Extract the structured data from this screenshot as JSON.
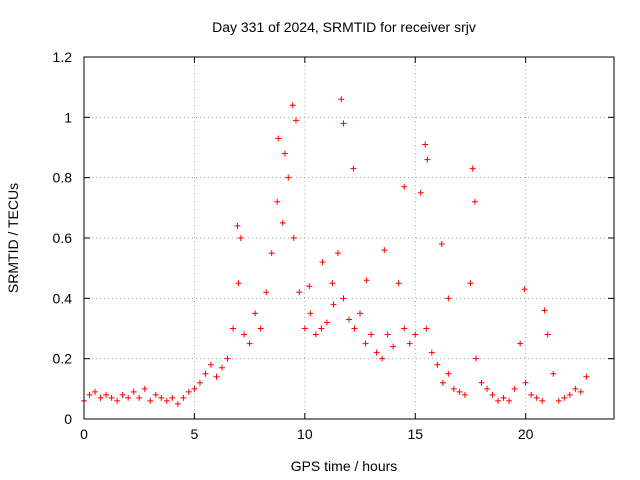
{
  "chart_data": {
    "type": "scatter",
    "title": "Day 331 of 2024, SRMTID for receiver srjv",
    "xlabel": "GPS time / hours",
    "ylabel": "SRMTID / TECUs",
    "xlim": [
      0,
      24
    ],
    "ylim": [
      0,
      1.2
    ],
    "x_ticks": [
      0,
      5,
      10,
      15,
      20
    ],
    "x_tick_labels": [
      "0",
      "5",
      "10",
      "15",
      "20"
    ],
    "y_ticks": [
      0,
      0.2,
      0.4,
      0.6,
      0.8,
      1.0,
      1.2
    ],
    "y_tick_labels": [
      "0",
      "0.2",
      "0.4",
      "0.6",
      "0.8",
      "1",
      "1.2"
    ],
    "grid": true,
    "marker": "+",
    "color": "#ff0000",
    "series": [
      {
        "name": "srjv",
        "x": [
          0.0,
          0.25,
          0.5,
          0.75,
          1.0,
          1.25,
          1.5,
          1.75,
          2.0,
          2.25,
          2.5,
          2.75,
          3.0,
          3.25,
          3.5,
          3.75,
          4.0,
          4.25,
          4.5,
          4.75,
          5.0,
          5.25,
          5.5,
          5.75,
          6.0,
          6.25,
          6.5,
          6.75,
          7.0,
          7.25,
          7.5,
          7.75,
          8.0,
          8.25,
          8.5,
          8.75,
          9.0,
          9.25,
          9.5,
          9.75,
          10.0,
          10.25,
          10.5,
          10.75,
          11.0,
          11.25,
          11.5,
          11.75,
          12.0,
          12.25,
          12.5,
          12.75,
          13.0,
          13.25,
          13.5,
          13.75,
          14.0,
          14.25,
          14.5,
          14.75,
          15.0,
          15.25,
          15.5,
          15.75,
          16.0,
          16.25,
          16.5,
          16.75,
          17.0,
          17.25,
          17.5,
          17.75,
          18.0,
          18.25,
          18.5,
          18.75,
          19.0,
          19.25,
          19.5,
          19.75,
          20.0,
          20.25,
          20.5,
          20.75,
          21.0,
          21.25,
          21.5,
          21.75,
          22.0,
          22.25,
          22.5,
          22.75,
          8.8,
          9.1,
          9.45,
          9.6,
          11.65,
          11.75,
          12.2,
          14.5,
          15.45,
          15.55,
          17.6,
          17.7,
          19.95,
          20.85,
          6.95,
          7.1,
          10.2,
          10.8,
          11.3,
          12.8,
          13.6,
          16.2,
          16.5
        ],
        "y": [
          0.06,
          0.08,
          0.09,
          0.07,
          0.08,
          0.07,
          0.06,
          0.08,
          0.07,
          0.09,
          0.07,
          0.1,
          0.06,
          0.08,
          0.07,
          0.06,
          0.07,
          0.05,
          0.07,
          0.09,
          0.1,
          0.12,
          0.15,
          0.18,
          0.14,
          0.17,
          0.2,
          0.3,
          0.45,
          0.28,
          0.25,
          0.35,
          0.3,
          0.42,
          0.55,
          0.72,
          0.65,
          0.8,
          0.6,
          0.42,
          0.3,
          0.35,
          0.28,
          0.3,
          0.32,
          0.45,
          0.55,
          0.4,
          0.33,
          0.3,
          0.35,
          0.25,
          0.28,
          0.22,
          0.2,
          0.28,
          0.24,
          0.45,
          0.3,
          0.25,
          0.28,
          0.75,
          0.3,
          0.22,
          0.18,
          0.12,
          0.15,
          0.1,
          0.09,
          0.08,
          0.45,
          0.2,
          0.12,
          0.1,
          0.08,
          0.06,
          0.07,
          0.06,
          0.1,
          0.25,
          0.12,
          0.08,
          0.07,
          0.06,
          0.28,
          0.15,
          0.06,
          0.07,
          0.08,
          0.1,
          0.09,
          0.14,
          0.93,
          0.88,
          1.04,
          0.99,
          1.06,
          0.98,
          0.83,
          0.77,
          0.91,
          0.86,
          0.83,
          0.72,
          0.43,
          0.36,
          0.64,
          0.6,
          0.44,
          0.52,
          0.38,
          0.46,
          0.56,
          0.58,
          0.4
        ]
      }
    ]
  }
}
